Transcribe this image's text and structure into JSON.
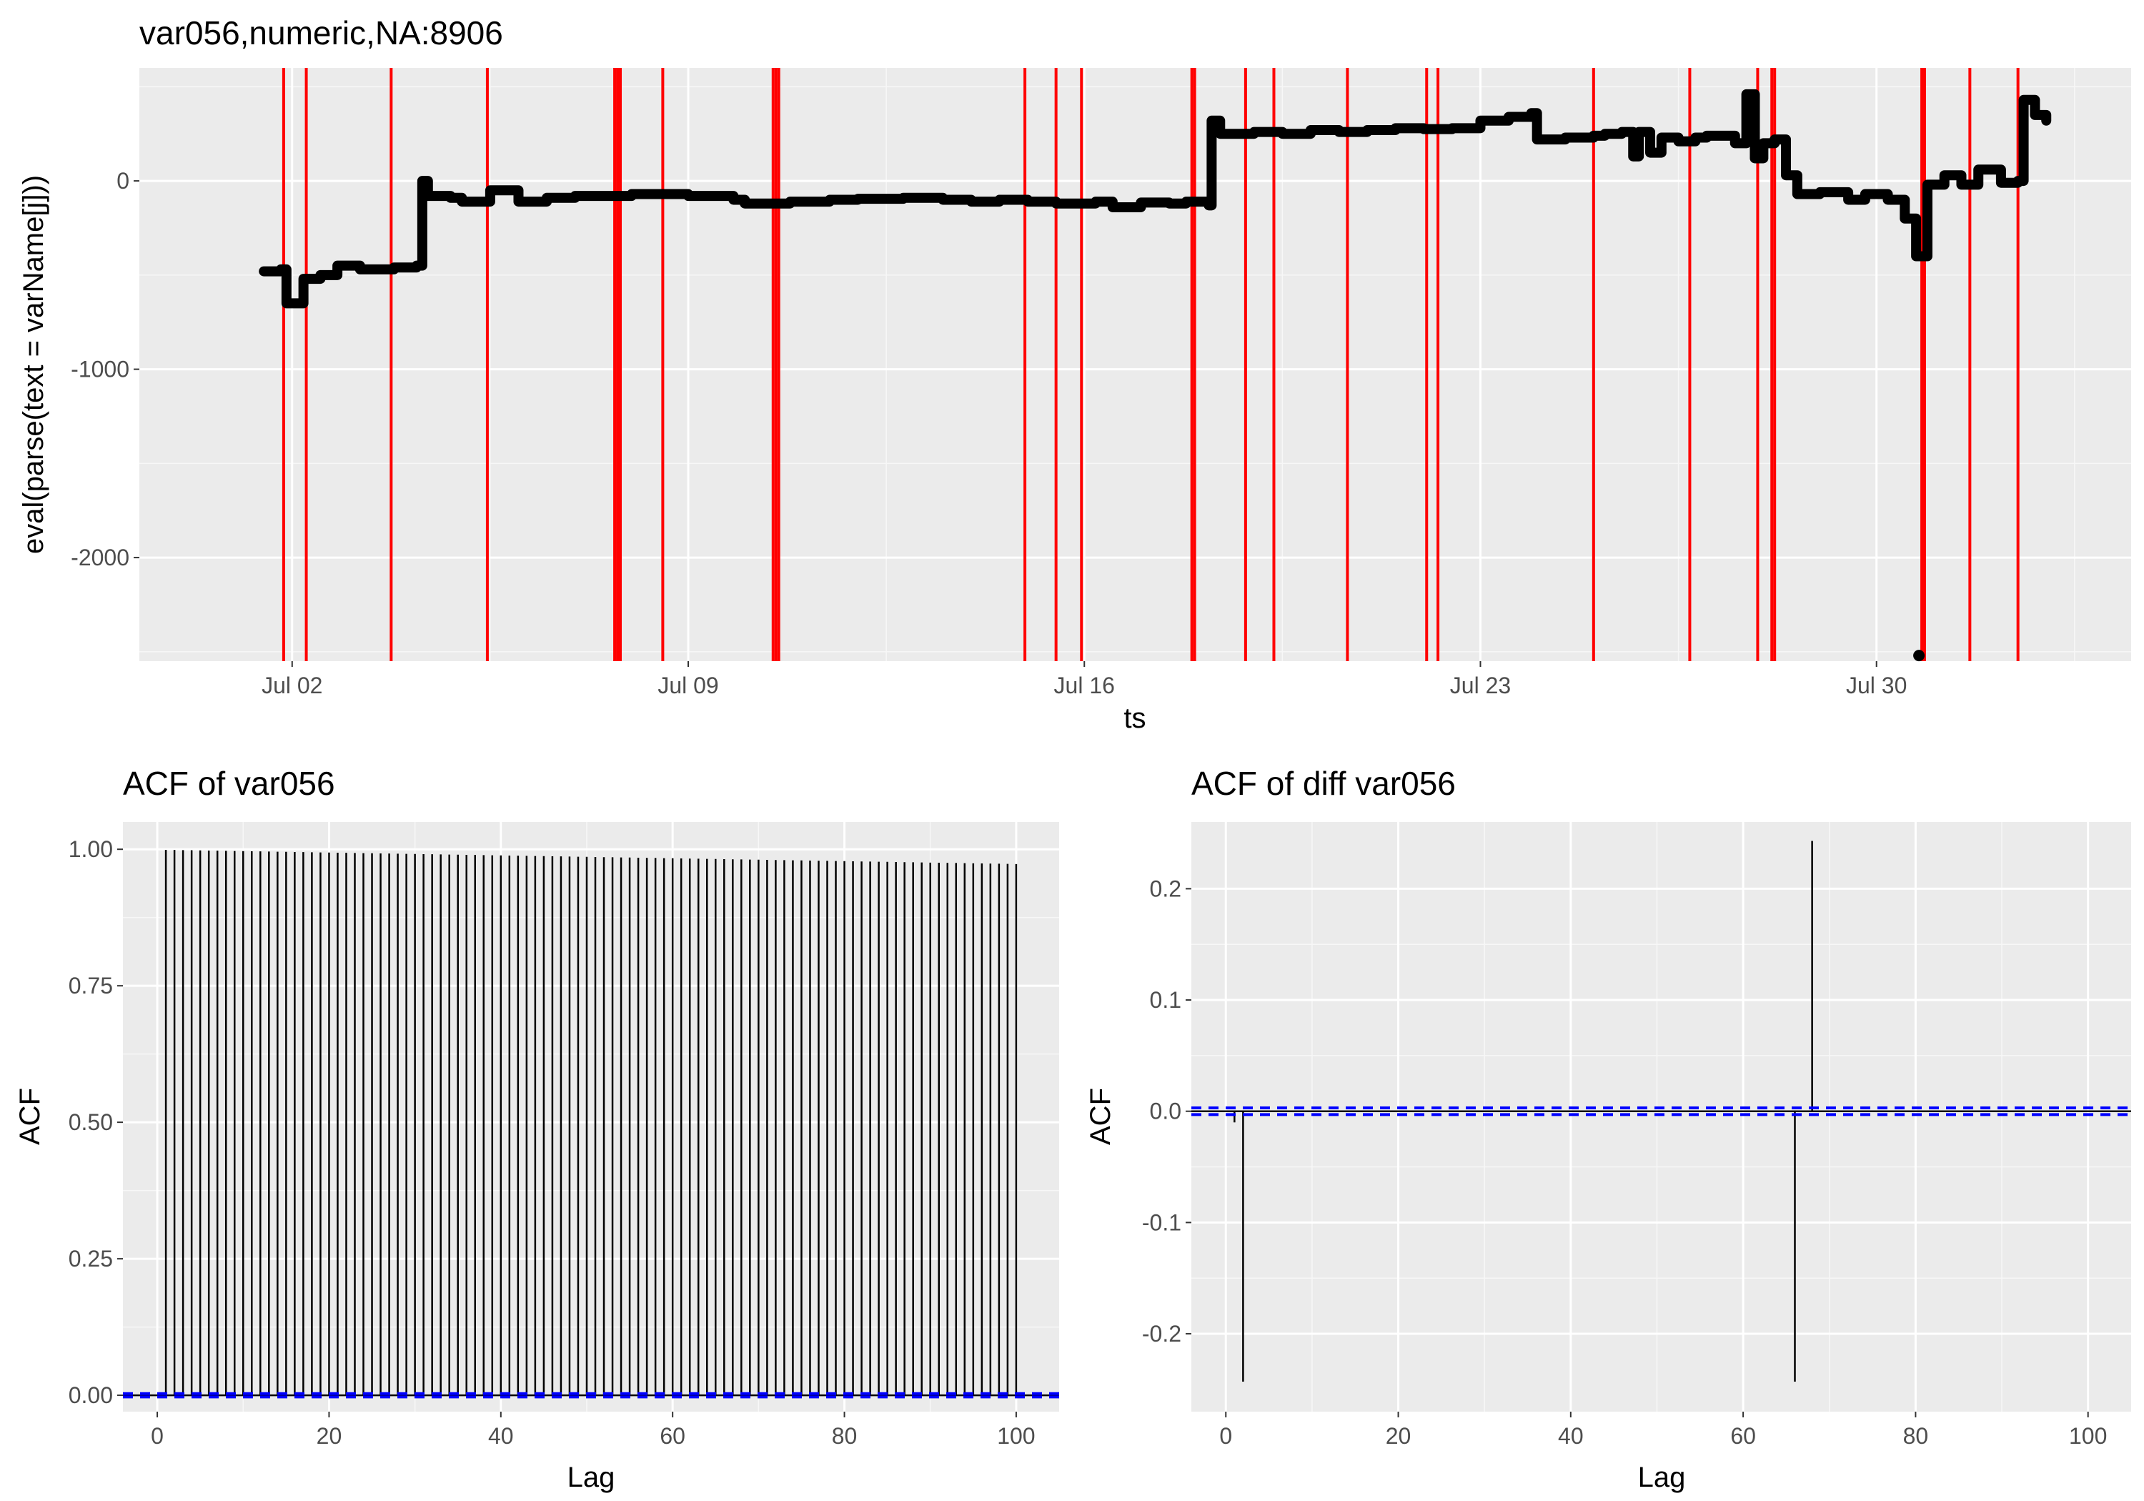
{
  "chart_data": [
    {
      "type": "line",
      "title": "var056,numeric,NA:8906",
      "xlabel": "ts",
      "ylabel": "eval(parse(text = varName[j]))",
      "x_ticks": [
        "Jul 02",
        "Jul 09",
        "Jul 16",
        "Jul 23",
        "Jul 30"
      ],
      "y_ticks": [
        "-2000",
        "-1000",
        "0"
      ],
      "ylim": [
        -2550,
        600
      ],
      "grid": true,
      "series": [
        {
          "color": "#000000",
          "points": [
            [
              0.5,
              -480
            ],
            [
              0.8,
              -470
            ],
            [
              0.9,
              -650
            ],
            [
              1.2,
              -520
            ],
            [
              1.5,
              -500
            ],
            [
              1.8,
              -450
            ],
            [
              2.2,
              -470
            ],
            [
              2.8,
              -460
            ],
            [
              3.2,
              -450
            ],
            [
              3.3,
              0
            ],
            [
              3.4,
              -80
            ],
            [
              3.8,
              -90
            ],
            [
              4.0,
              -110
            ],
            [
              4.5,
              -50
            ],
            [
              5.0,
              -110
            ],
            [
              5.5,
              -90
            ],
            [
              6.0,
              -80
            ],
            [
              7.0,
              -70
            ],
            [
              8.0,
              -80
            ],
            [
              8.8,
              -100
            ],
            [
              9.0,
              -120
            ],
            [
              9.8,
              -110
            ],
            [
              10.5,
              -100
            ],
            [
              11.0,
              -95
            ],
            [
              11.8,
              -90
            ],
            [
              12.5,
              -100
            ],
            [
              13.0,
              -110
            ],
            [
              13.5,
              -100
            ],
            [
              14.0,
              -110
            ],
            [
              14.5,
              -120
            ],
            [
              15.2,
              -110
            ],
            [
              15.5,
              -140
            ],
            [
              16.0,
              -115
            ],
            [
              16.5,
              -120
            ],
            [
              16.8,
              -110
            ],
            [
              17.2,
              -130
            ],
            [
              17.25,
              320
            ],
            [
              17.4,
              250
            ],
            [
              18.0,
              260
            ],
            [
              18.5,
              250
            ],
            [
              19.0,
              270
            ],
            [
              19.5,
              260
            ],
            [
              20.0,
              270
            ],
            [
              20.5,
              280
            ],
            [
              21.0,
              275
            ],
            [
              21.5,
              280
            ],
            [
              22.0,
              320
            ],
            [
              22.5,
              340
            ],
            [
              22.9,
              360
            ],
            [
              23.0,
              220
            ],
            [
              23.5,
              230
            ],
            [
              24.0,
              240
            ],
            [
              24.2,
              250
            ],
            [
              24.5,
              260
            ],
            [
              24.7,
              130
            ],
            [
              24.8,
              260
            ],
            [
              25.0,
              150
            ],
            [
              25.2,
              230
            ],
            [
              25.5,
              210
            ],
            [
              25.8,
              230
            ],
            [
              26.0,
              240
            ],
            [
              26.5,
              200
            ],
            [
              26.7,
              460
            ],
            [
              26.85,
              120
            ],
            [
              27.0,
              200
            ],
            [
              27.2,
              220
            ],
            [
              27.4,
              30
            ],
            [
              27.6,
              -70
            ],
            [
              28.0,
              -60
            ],
            [
              28.5,
              -100
            ],
            [
              28.8,
              -70
            ],
            [
              29.2,
              -100
            ],
            [
              29.5,
              -200
            ],
            [
              29.7,
              -400
            ],
            [
              29.9,
              -20
            ],
            [
              30.2,
              30
            ],
            [
              30.5,
              -20
            ],
            [
              30.8,
              60
            ],
            [
              31.2,
              -10
            ],
            [
              31.5,
              0
            ],
            [
              31.6,
              430
            ],
            [
              31.8,
              350
            ],
            [
              32.0,
              320
            ]
          ]
        }
      ],
      "outliers": [
        [
          29.75,
          -2520
        ]
      ],
      "vlines": [
        {
          "x": 0.85,
          "color": "#ff0000"
        },
        {
          "x": 1.25,
          "color": "#ff0000"
        },
        {
          "x": 2.75,
          "color": "#ff0000"
        },
        {
          "x": 4.45,
          "color": "#ff0000"
        },
        {
          "x": 6.7,
          "color": "#ff0000"
        },
        {
          "x": 6.75,
          "color": "#ff0000"
        },
        {
          "x": 6.8,
          "color": "#ff0000"
        },
        {
          "x": 7.55,
          "color": "#ff0000"
        },
        {
          "x": 9.5,
          "color": "#ff0000"
        },
        {
          "x": 9.55,
          "color": "#ff0000"
        },
        {
          "x": 9.6,
          "color": "#ff0000"
        },
        {
          "x": 13.95,
          "color": "#ff0000"
        },
        {
          "x": 14.5,
          "color": "#ff0000"
        },
        {
          "x": 14.95,
          "color": "#ff0000"
        },
        {
          "x": 16.9,
          "color": "#ff0000"
        },
        {
          "x": 16.95,
          "color": "#ff0000"
        },
        {
          "x": 17.85,
          "color": "#ff0000"
        },
        {
          "x": 18.35,
          "color": "#ff0000"
        },
        {
          "x": 19.65,
          "color": "#ff0000"
        },
        {
          "x": 21.05,
          "color": "#ff0000"
        },
        {
          "x": 21.25,
          "color": "#ff0000"
        },
        {
          "x": 24.0,
          "color": "#ff0000"
        },
        {
          "x": 25.7,
          "color": "#ff0000"
        },
        {
          "x": 26.9,
          "color": "#ff0000"
        },
        {
          "x": 27.15,
          "color": "#ff0000"
        },
        {
          "x": 27.2,
          "color": "#ff0000"
        },
        {
          "x": 29.8,
          "color": "#ff0000"
        },
        {
          "x": 29.85,
          "color": "#ff0000"
        },
        {
          "x": 30.65,
          "color": "#ff0000"
        },
        {
          "x": 31.5,
          "color": "#ff0000"
        }
      ],
      "xlim": [
        -1.7,
        33.5
      ]
    },
    {
      "type": "bar",
      "title": "ACF of var056",
      "xlabel": "Lag",
      "ylabel": "ACF",
      "x_ticks": [
        "0",
        "20",
        "40",
        "60",
        "80",
        "100"
      ],
      "y_ticks": [
        "0.00",
        "0.25",
        "0.50",
        "0.75",
        "1.00"
      ],
      "xlim": [
        -4,
        105
      ],
      "ylim": [
        -0.03,
        1.05
      ],
      "grid": true,
      "acf_start": 0.999,
      "acf_end": 0.973,
      "lag_max": 100,
      "conf_bound": 0.003,
      "conf_color": "#0000ff"
    },
    {
      "type": "bar",
      "title": "ACF of diff var056",
      "xlabel": "Lag",
      "ylabel": "ACF",
      "x_ticks": [
        "0",
        "20",
        "40",
        "60",
        "80",
        "100"
      ],
      "y_ticks": [
        "-0.2",
        "-0.1",
        "0.0",
        "0.1",
        "0.2"
      ],
      "xlim": [
        -4,
        105
      ],
      "ylim": [
        -0.27,
        0.26
      ],
      "grid": true,
      "lags": [
        1,
        2,
        66,
        68
      ],
      "values": [
        -0.01,
        -0.243,
        -0.243,
        0.243
      ],
      "conf_bound": 0.003,
      "conf_color": "#0000ff"
    }
  ]
}
